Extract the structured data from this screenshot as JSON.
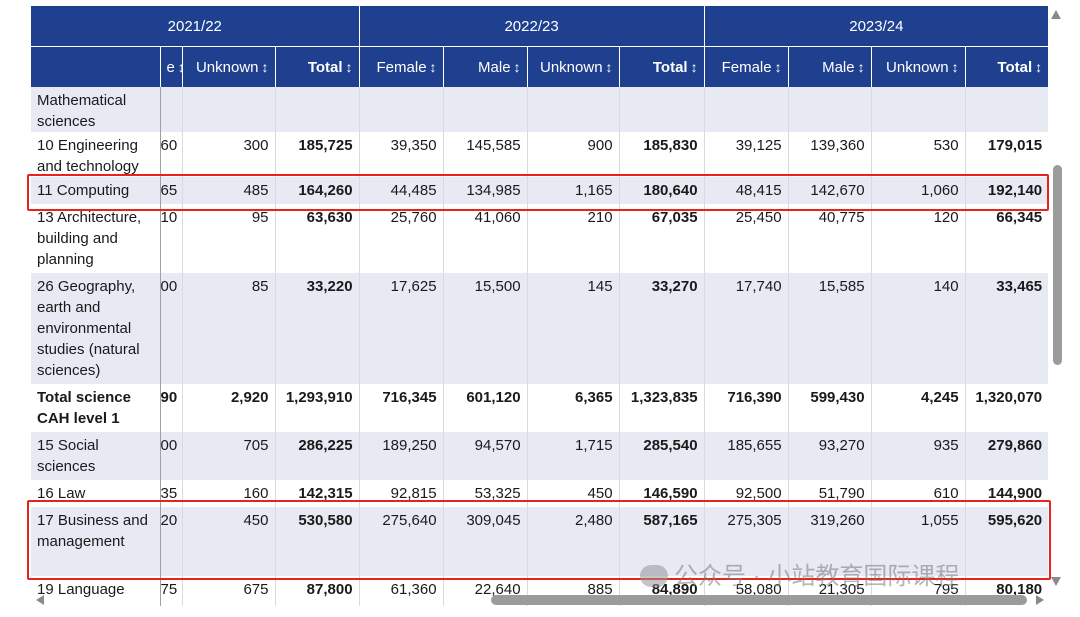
{
  "years": [
    "2021/22",
    "2022/23",
    "2023/24"
  ],
  "col_headers": {
    "cut_2122": "e",
    "unknown_2122": "Unknown",
    "total_2122": "Total",
    "female_2223": "Female",
    "male_2223": "Male",
    "unknown_2223": "Unknown",
    "total_2223": "Total",
    "female_2324": "Female",
    "male_2324": "Male",
    "unknown_2324": "Unknown",
    "total_2324": "Total"
  },
  "sort_icon": "↕",
  "rows": [
    {
      "subject": "Mathematical sciences",
      "cut": "",
      "u1": "",
      "t1": "",
      "f2": "",
      "m2": "",
      "u2": "",
      "t2": "",
      "f3": "",
      "m3": "",
      "u3": "",
      "t3": ""
    },
    {
      "subject": "10 Engineering and technology",
      "cut": "60",
      "u1": "300",
      "t1": "185,725",
      "f2": "39,350",
      "m2": "145,585",
      "u2": "900",
      "t2": "185,830",
      "f3": "39,125",
      "m3": "139,360",
      "u3": "530",
      "t3": "179,015"
    },
    {
      "subject": "11 Computing",
      "cut": "65",
      "u1": "485",
      "t1": "164,260",
      "f2": "44,485",
      "m2": "134,985",
      "u2": "1,165",
      "t2": "180,640",
      "f3": "48,415",
      "m3": "142,670",
      "u3": "1,060",
      "t3": "192,140"
    },
    {
      "subject": "13 Architecture, building and planning",
      "cut": "10",
      "u1": "95",
      "t1": "63,630",
      "f2": "25,760",
      "m2": "41,060",
      "u2": "210",
      "t2": "67,035",
      "f3": "25,450",
      "m3": "40,775",
      "u3": "120",
      "t3": "66,345"
    },
    {
      "subject": "26 Geography, earth and environmental studies (natural sciences)",
      "cut": "00",
      "u1": "85",
      "t1": "33,220",
      "f2": "17,625",
      "m2": "15,500",
      "u2": "145",
      "t2": "33,270",
      "f3": "17,740",
      "m3": "15,585",
      "u3": "140",
      "t3": "33,465"
    },
    {
      "subject": "Total science CAH level 1",
      "cut": "90",
      "u1": "2,920",
      "t1": "1,293,910",
      "f2": "716,345",
      "m2": "601,120",
      "u2": "6,365",
      "t2": "1,323,835",
      "f3": "716,390",
      "m3": "599,430",
      "u3": "4,245",
      "t3": "1,320,070"
    },
    {
      "subject": "15 Social sciences",
      "cut": "00",
      "u1": "705",
      "t1": "286,225",
      "f2": "189,250",
      "m2": "94,570",
      "u2": "1,715",
      "t2": "285,540",
      "f3": "185,655",
      "m3": "93,270",
      "u3": "935",
      "t3": "279,860"
    },
    {
      "subject": "16 Law",
      "cut": "35",
      "u1": "160",
      "t1": "142,315",
      "f2": "92,815",
      "m2": "53,325",
      "u2": "450",
      "t2": "146,590",
      "f3": "92,500",
      "m3": "51,790",
      "u3": "610",
      "t3": "144,900"
    },
    {
      "subject": "17 Business and management",
      "cut": "20",
      "u1": "450",
      "t1": "530,580",
      "f2": "275,640",
      "m2": "309,045",
      "u2": "2,480",
      "t2": "587,165",
      "f3": "275,305",
      "m3": "319,260",
      "u3": "1,055",
      "t3": "595,620"
    },
    {
      "subject": "19 Language",
      "cut": "75",
      "u1": "675",
      "t1": "87,800",
      "f2": "61,360",
      "m2": "22,640",
      "u2": "885",
      "t2": "84,890",
      "f3": "58,080",
      "m3": "21,305",
      "u3": "795",
      "t3": "80,180"
    }
  ],
  "watermark": "公众号 · 小站教育国际课程",
  "colors": {
    "header_bg": "#1f3f8f",
    "row_shade": "#e7e9f3",
    "highlight_box": "#e8231d"
  }
}
